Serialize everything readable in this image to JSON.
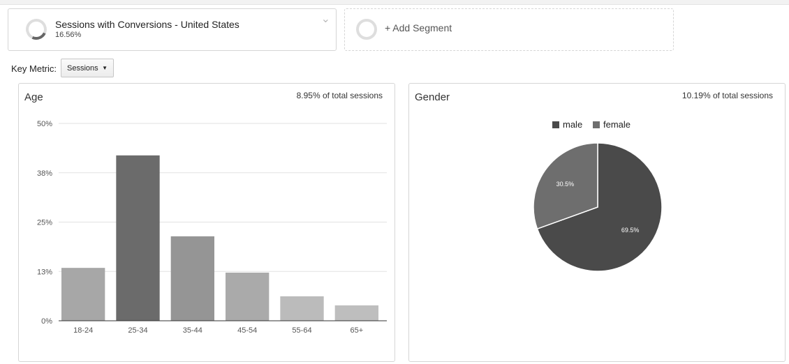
{
  "segment": {
    "title": "Sessions with Conversions - United States",
    "percent": "16.56%",
    "add_label": "+ Add Segment"
  },
  "key_metric": {
    "label": "Key Metric:",
    "selected": "Sessions"
  },
  "colors": {
    "male": "#4a4a4a",
    "female": "#6e6e6e"
  },
  "chart_data": [
    {
      "type": "bar",
      "title": "Age",
      "note": "8.95% of total sessions",
      "categories": [
        "18-24",
        "25-34",
        "35-44",
        "45-54",
        "55-64",
        "65+"
      ],
      "values": [
        13.4,
        41.9,
        21.4,
        12.2,
        6.2,
        3.9
      ],
      "colors": [
        "#a7a7a7",
        "#6b6b6b",
        "#959595",
        "#aaaaaa",
        "#bbbbbb",
        "#bebebe"
      ],
      "ylim": [
        0,
        50
      ],
      "yticks": [
        0,
        12.5,
        25,
        37.5,
        50
      ],
      "ytick_labels": [
        "0%",
        "13%",
        "25%",
        "38%",
        "50%"
      ],
      "grid": true
    },
    {
      "type": "pie",
      "title": "Gender",
      "note": "10.19% of total sessions",
      "labels": [
        "male",
        "female"
      ],
      "values": [
        69.5,
        30.5
      ],
      "data_labels": [
        "69.5%",
        "30.5%"
      ],
      "colors": [
        "#4a4a4a",
        "#6e6e6e"
      ],
      "legend": "top"
    }
  ]
}
